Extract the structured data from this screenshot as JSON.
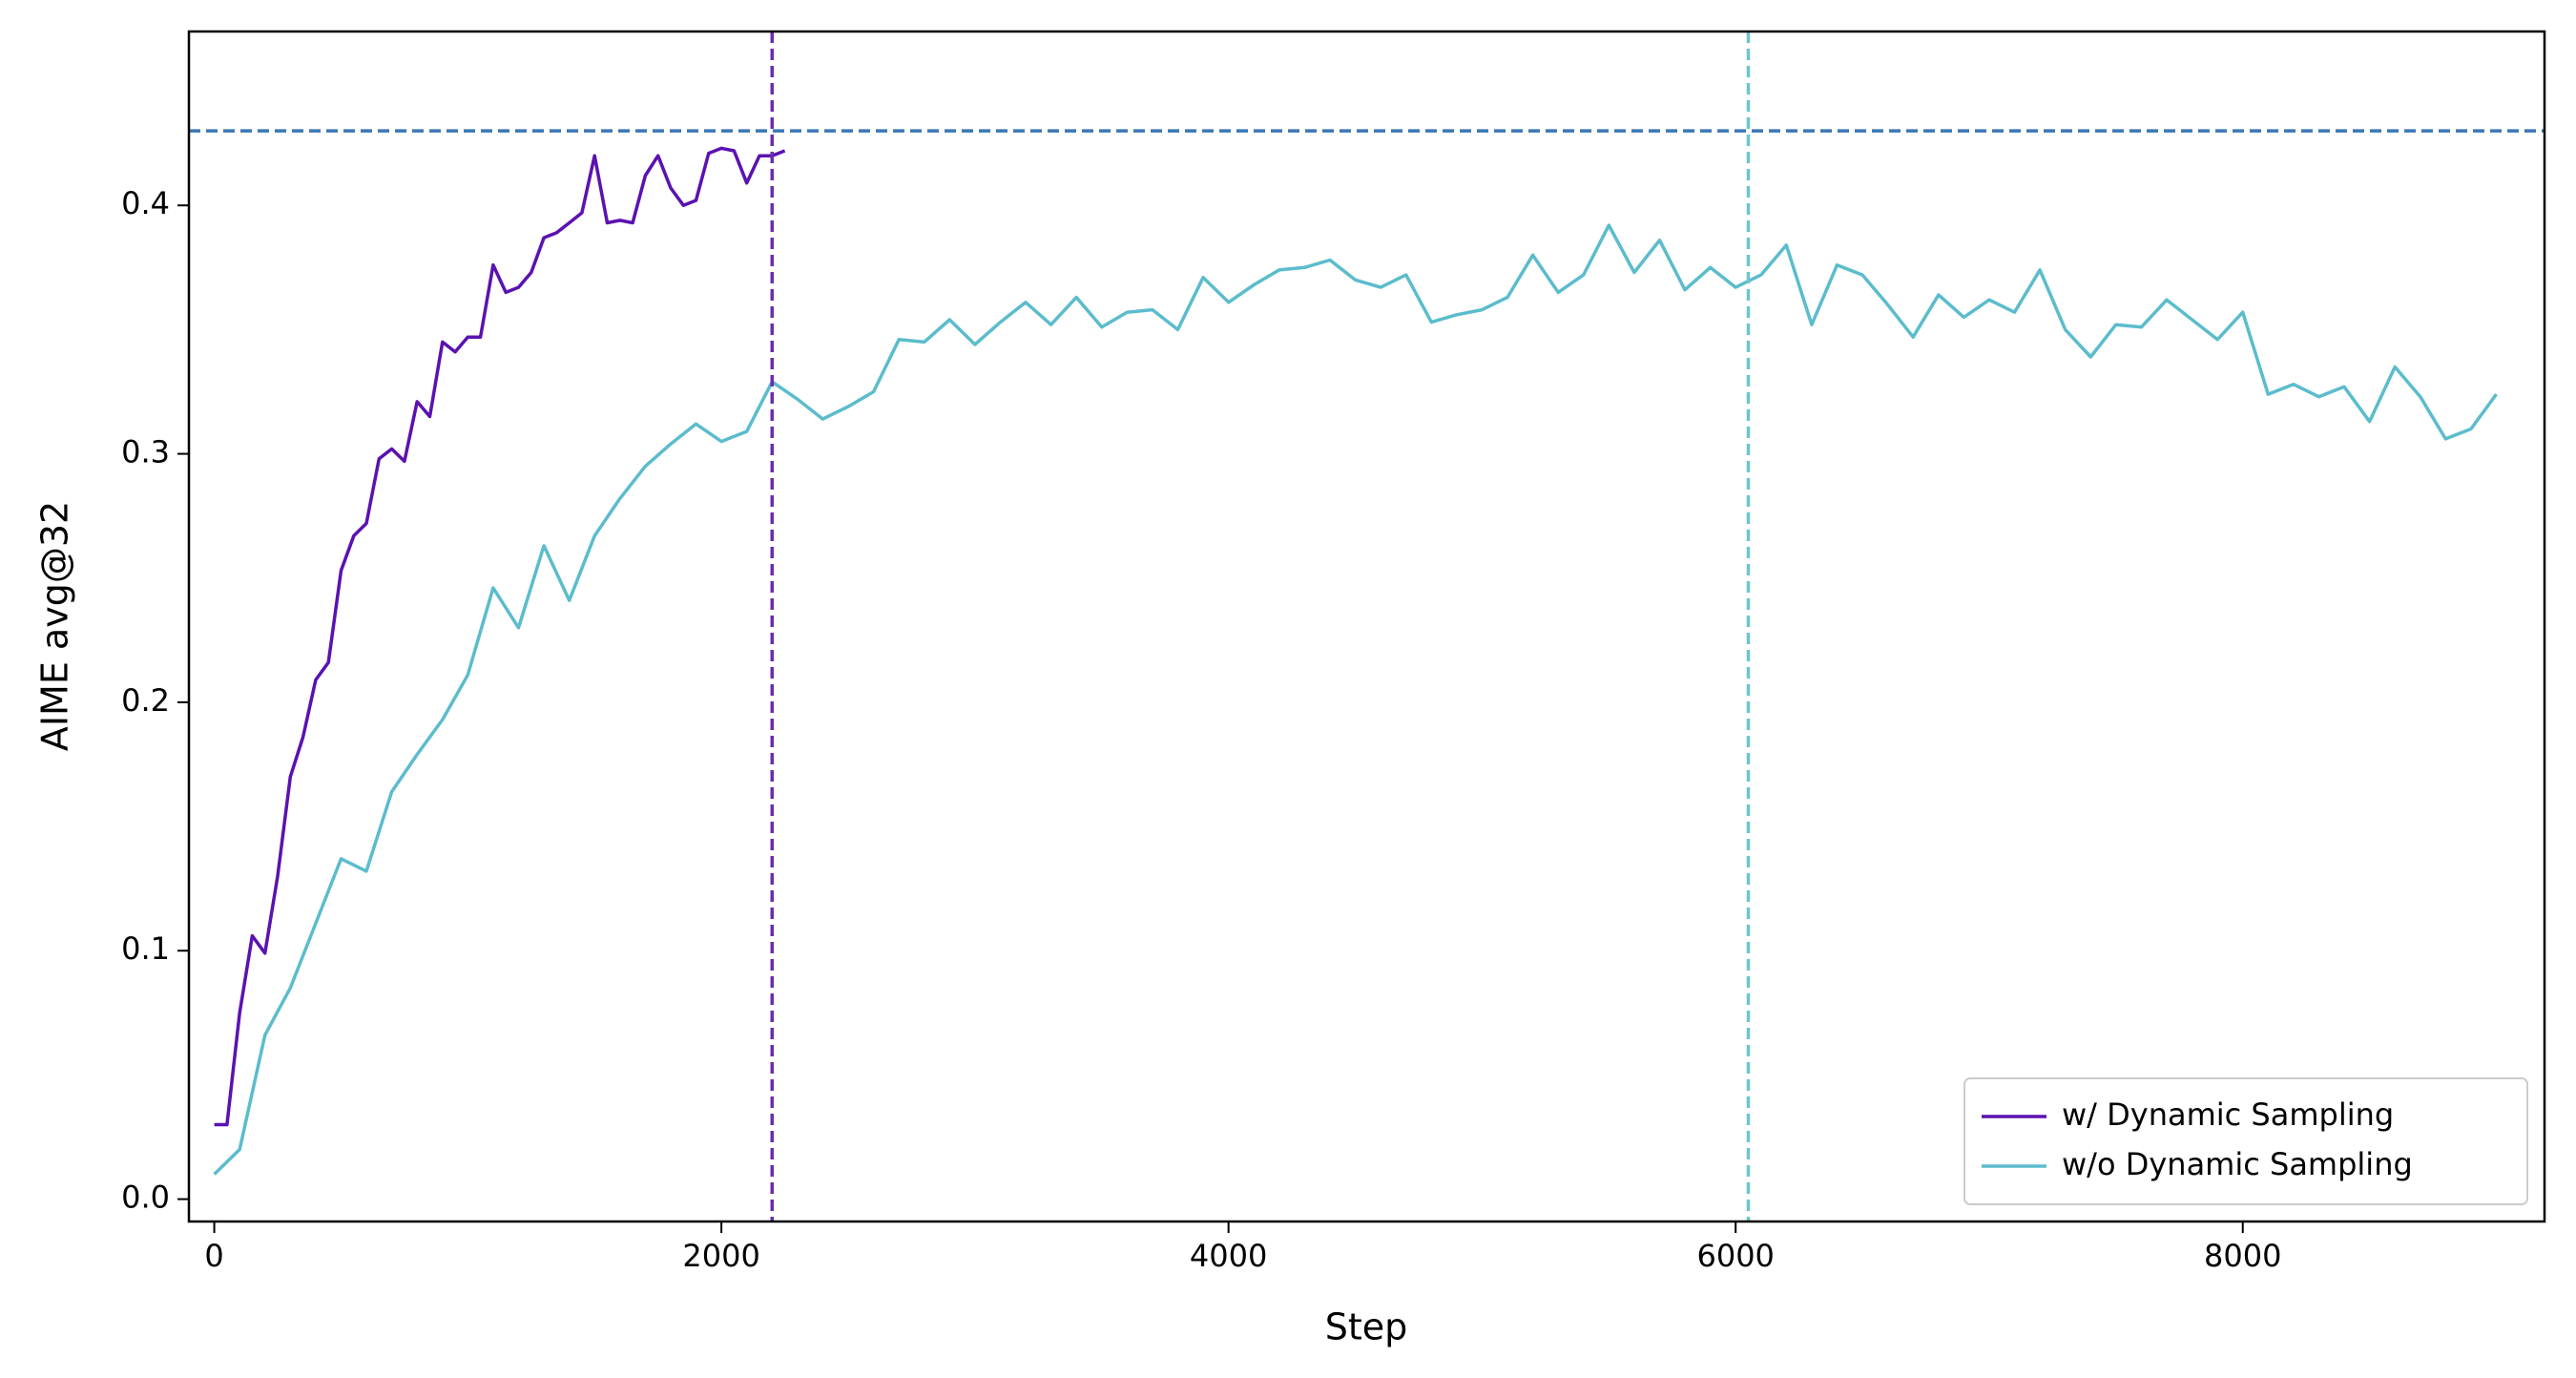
{
  "chart_data": {
    "type": "line",
    "xlabel": "Step",
    "ylabel": "AIME avg@32",
    "xlim": [
      -100,
      9190
    ],
    "ylim": [
      -0.009,
      0.47
    ],
    "xticks": [
      0,
      2000,
      4000,
      6000,
      8000
    ],
    "yticks": [
      {
        "value": 0,
        "label": "0.0"
      },
      0.1,
      0.2,
      0.3,
      0.4
    ],
    "legend": "lower right",
    "series": [
      {
        "name": "w/ Dynamic Sampling",
        "color": "#5b12b0",
        "x": [
          0,
          50,
          100,
          150,
          200,
          250,
          300,
          350,
          400,
          450,
          500,
          550,
          600,
          650,
          700,
          750,
          800,
          850,
          900,
          950,
          1000,
          1050,
          1100,
          1150,
          1200,
          1250,
          1300,
          1350,
          1400,
          1450,
          1500,
          1550,
          1600,
          1650,
          1700,
          1750,
          1800,
          1850,
          1900,
          1950,
          2000,
          2050,
          2100,
          2150,
          2200,
          2250
        ],
        "values": [
          0.03,
          0.03,
          0.075,
          0.106,
          0.099,
          0.13,
          0.17,
          0.186,
          0.209,
          0.216,
          0.253,
          0.267,
          0.272,
          0.298,
          0.302,
          0.297,
          0.321,
          0.315,
          0.345,
          0.341,
          0.347,
          0.347,
          0.376,
          0.365,
          0.367,
          0.373,
          0.387,
          0.389,
          0.393,
          0.397,
          0.42,
          0.393,
          0.394,
          0.393,
          0.412,
          0.42,
          0.407,
          0.4,
          0.402,
          0.421,
          0.423,
          0.422,
          0.409,
          0.42,
          0.42,
          0.422
        ]
      },
      {
        "name": "w/o Dynamic Sampling",
        "color": "#5bbccc",
        "x": [
          0,
          100,
          200,
          300,
          400,
          500,
          600,
          700,
          800,
          900,
          1000,
          1100,
          1200,
          1300,
          1400,
          1500,
          1600,
          1700,
          1800,
          1900,
          2000,
          2100,
          2200,
          2300,
          2400,
          2500,
          2600,
          2700,
          2800,
          2900,
          3000,
          3100,
          3200,
          3300,
          3400,
          3500,
          3600,
          3700,
          3800,
          3900,
          4000,
          4100,
          4200,
          4300,
          4400,
          4500,
          4600,
          4700,
          4800,
          4900,
          5000,
          5100,
          5200,
          5300,
          5400,
          5500,
          5600,
          5700,
          5800,
          5900,
          6000,
          6100,
          6200,
          6300,
          6400,
          6500,
          6600,
          6700,
          6800,
          6900,
          7000,
          7100,
          7200,
          7300,
          7400,
          7500,
          7600,
          7700,
          7800,
          7900,
          8000,
          8100,
          8200,
          8300,
          8400,
          8500,
          8600,
          8700,
          8800,
          8900,
          9000
        ],
        "values": [
          0.01,
          0.02,
          0.066,
          0.085,
          0.111,
          0.137,
          0.132,
          0.164,
          0.179,
          0.193,
          0.211,
          0.246,
          0.23,
          0.263,
          0.241,
          0.267,
          0.282,
          0.295,
          0.304,
          0.312,
          0.305,
          0.309,
          0.329,
          0.322,
          0.314,
          0.319,
          0.325,
          0.346,
          0.345,
          0.354,
          0.344,
          0.353,
          0.361,
          0.352,
          0.363,
          0.351,
          0.357,
          0.358,
          0.35,
          0.371,
          0.361,
          0.368,
          0.374,
          0.375,
          0.378,
          0.37,
          0.367,
          0.372,
          0.353,
          0.356,
          0.358,
          0.363,
          0.38,
          0.365,
          0.372,
          0.392,
          0.373,
          0.386,
          0.366,
          0.375,
          0.367,
          0.372,
          0.384,
          0.352,
          0.376,
          0.372,
          0.36,
          0.347,
          0.364,
          0.355,
          0.362,
          0.357,
          0.374,
          0.35,
          0.339,
          0.352,
          0.351,
          0.362,
          0.354,
          0.346,
          0.357,
          0.324,
          0.328,
          0.323,
          0.327,
          0.313,
          0.335,
          0.323,
          0.306,
          0.31,
          0.324
        ]
      }
    ],
    "hlines": [
      {
        "value": 0.43,
        "color": "#3b77b3"
      }
    ],
    "vlines": [
      {
        "value": 2200,
        "color": "#6a2db0"
      },
      {
        "value": 6050,
        "color": "#6cc5cf"
      }
    ]
  }
}
